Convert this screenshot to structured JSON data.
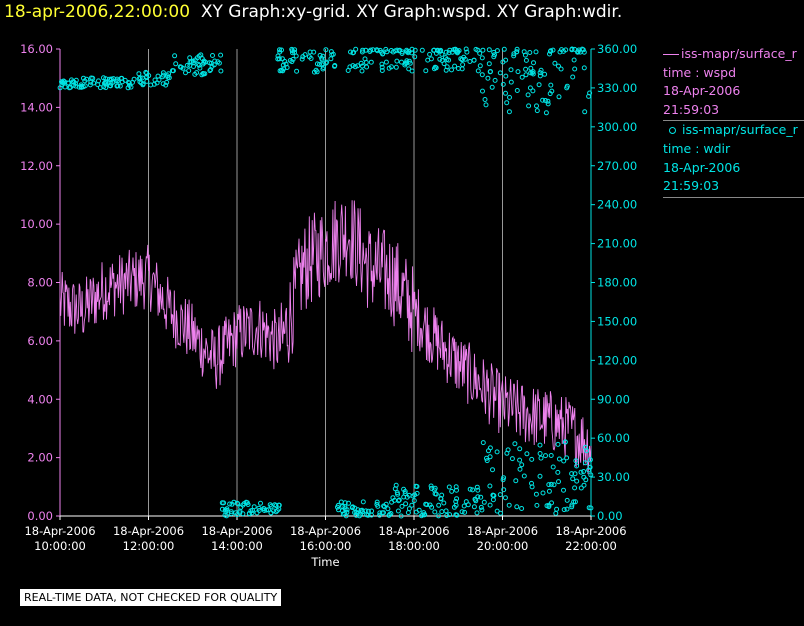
{
  "header": {
    "date": "18-apr-2006,22:00:00",
    "rest": "XY Graph:xy-grid.  XY Graph:wspd.  XY Graph:wdir."
  },
  "legend": {
    "wspd": {
      "name": "iss-mapr/surface_r",
      "line1": "time : wspd",
      "line2": "18-Apr-2006",
      "line3": "21:59:03"
    },
    "wdir": {
      "name": "iss-mapr/surface_r",
      "line1": "time : wdir",
      "line2": "18-Apr-2006",
      "line3": "21:59:03"
    }
  },
  "note": "REAL-TIME DATA, NOT CHECKED FOR QUALITY",
  "colors": {
    "wspd": "#ee82ee",
    "wdir": "#00e5e5",
    "grid": "#999999",
    "background": "#000000"
  },
  "chart_data": {
    "type": "line",
    "xlabel": "Time",
    "x_ticks": [
      {
        "date": "18-Apr-2006",
        "time": "10:00:00"
      },
      {
        "date": "18-Apr-2006",
        "time": "12:00:00"
      },
      {
        "date": "18-Apr-2006",
        "time": "14:00:00"
      },
      {
        "date": "18-Apr-2006",
        "time": "16:00:00"
      },
      {
        "date": "18-Apr-2006",
        "time": "18:00:00"
      },
      {
        "date": "18-Apr-2006",
        "time": "20:00:00"
      },
      {
        "date": "18-Apr-2006",
        "time": "22:00:00"
      }
    ],
    "xlim": [
      "2006-04-18 10:00:00",
      "2006-04-18 22:00:00"
    ],
    "y_left": {
      "ylim": [
        0,
        16
      ],
      "ticks": [
        "0.00",
        "2.00",
        "4.00",
        "6.00",
        "8.00",
        "10.00",
        "12.00",
        "14.00",
        "16.00"
      ]
    },
    "y_right": {
      "ylim": [
        0,
        360
      ],
      "ticks": [
        "0.00",
        "30.00",
        "60.00",
        "90.00",
        "120.00",
        "150.00",
        "180.00",
        "210.00",
        "240.00",
        "270.00",
        "300.00",
        "330.00",
        "360.00"
      ]
    },
    "grid": "vertical",
    "series": [
      {
        "name": "wspd",
        "axis": "left",
        "style": "line",
        "anchors_time": [
          "10:00",
          "10:30",
          "11:00",
          "11:30",
          "12:00",
          "12:30",
          "12:50",
          "13:00",
          "13:30",
          "14:00",
          "14:30",
          "15:00",
          "15:30",
          "16:00",
          "16:30",
          "17:00",
          "17:30",
          "18:00",
          "18:30",
          "19:00",
          "19:30",
          "20:00",
          "20:30",
          "21:00",
          "21:30",
          "22:00"
        ],
        "anchors_value": [
          7.3,
          7.0,
          7.8,
          8.0,
          8.2,
          7.0,
          6.5,
          6.2,
          5.3,
          6.2,
          6.5,
          5.8,
          8.5,
          9.2,
          9.8,
          8.5,
          8.2,
          7.0,
          6.0,
          5.2,
          4.5,
          3.8,
          3.5,
          3.3,
          3.0,
          2.4
        ]
      },
      {
        "name": "wdir",
        "axis": "right",
        "style": "scatter",
        "segments": [
          {
            "from": "10:00",
            "to": "11:45",
            "value": 334,
            "spread": 4
          },
          {
            "from": "11:45",
            "to": "12:30",
            "value": 337,
            "spread": 5
          },
          {
            "from": "12:30",
            "to": "13:40",
            "value": 348,
            "spread": 8
          },
          {
            "from": "13:40",
            "to": "14:35",
            "value": 5,
            "spread": 6
          },
          {
            "from": "14:35",
            "to": "15:00",
            "value": 5,
            "spread": 4
          },
          {
            "from": "14:55",
            "to": "16:15",
            "value": 352,
            "spread": 10
          },
          {
            "from": "16:15",
            "to": "17:30",
            "value": 5,
            "spread": 6
          },
          {
            "from": "16:30",
            "to": "19:30",
            "value": 355,
            "spread": 12
          },
          {
            "from": "17:30",
            "to": "19:30",
            "value": 12,
            "spread": 12
          },
          {
            "from": "19:30",
            "to": "22:00",
            "value": 340,
            "spread": 30
          },
          {
            "from": "19:30",
            "to": "22:00",
            "value": 30,
            "spread": 28
          }
        ]
      }
    ]
  }
}
